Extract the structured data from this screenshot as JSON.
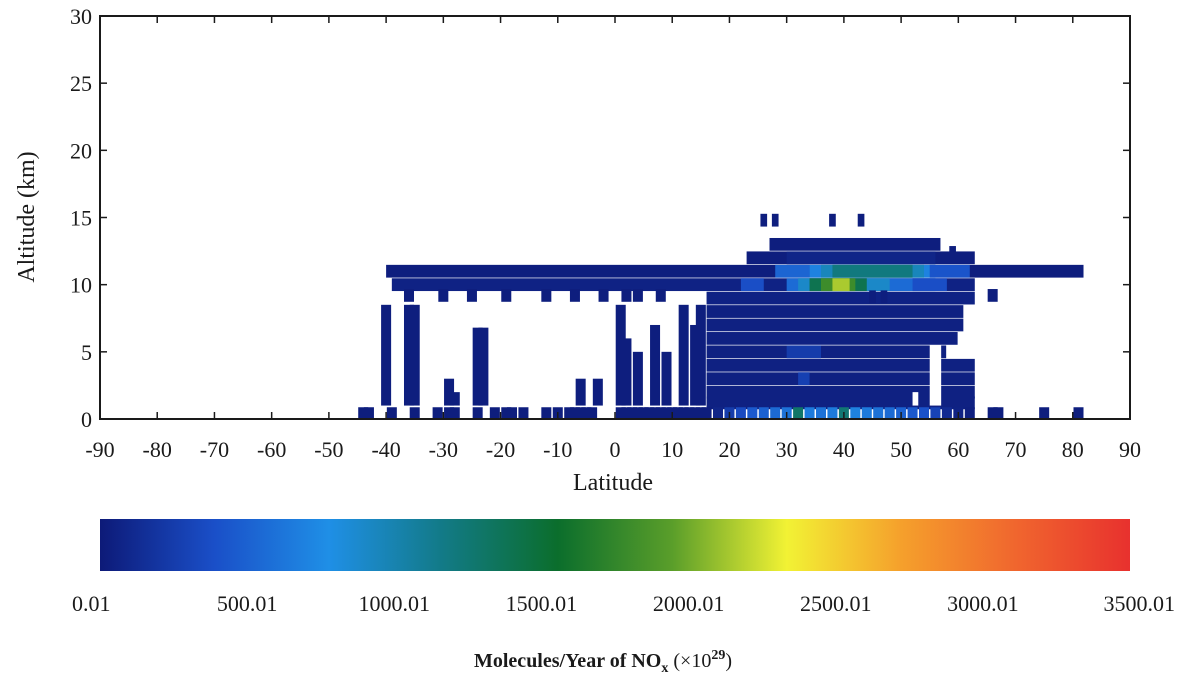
{
  "chart_data": {
    "type": "heatmap",
    "title": "",
    "xlabel": "Latitude",
    "ylabel": "Altitude (km)",
    "xlim": [
      -90,
      90
    ],
    "ylim": [
      0,
      30
    ],
    "x_ticks": [
      "-90",
      "-80",
      "-70",
      "-60",
      "-50",
      "-40",
      "-30",
      "-20",
      "-10",
      "0",
      "10",
      "20",
      "30",
      "40",
      "50",
      "60",
      "70",
      "80",
      "90"
    ],
    "y_ticks": [
      "0",
      "5",
      "10",
      "15",
      "20",
      "25",
      "30"
    ],
    "cell_size": {
      "lat": 1.75,
      "alt": 0.95
    },
    "colorbar": {
      "ticks": [
        "0.01",
        "500.01",
        "1000.01",
        "1500.01",
        "2000.01",
        "2500.01",
        "3000.01",
        "3500.01"
      ],
      "range": [
        0.01,
        3500.01
      ],
      "label_main": "Molecules/Year of NO",
      "label_sub": "x",
      "label_unit": " (×10",
      "label_exp": "29",
      "label_close": ")",
      "colors": [
        "#0d1a78",
        "#1a4fc8",
        "#1f8fe6",
        "#127a86",
        "#0b6e2c",
        "#5a9e2a",
        "#f2f234",
        "#f5a02c",
        "#f0662e",
        "#e8312e"
      ]
    },
    "cells": [
      {
        "lat": -44,
        "alt": 0.4,
        "v": 30
      },
      {
        "lat": -43,
        "alt": 0.4,
        "v": 30
      },
      {
        "lat": -39,
        "alt": 0.4,
        "v": 30
      },
      {
        "lat": -35,
        "alt": 0.4,
        "v": 30
      },
      {
        "lat": -31,
        "alt": 0.4,
        "v": 30
      },
      {
        "lat": -29,
        "alt": 0.4,
        "v": 30
      },
      {
        "lat": -28,
        "alt": 0.4,
        "v": 30
      },
      {
        "lat": -24,
        "alt": 0.4,
        "v": 30
      },
      {
        "lat": -21,
        "alt": 0.4,
        "v": 30
      },
      {
        "lat": -19,
        "alt": 0.4,
        "v": 30
      },
      {
        "lat": -18,
        "alt": 0.4,
        "v": 30
      },
      {
        "lat": -16,
        "alt": 0.4,
        "v": 30
      },
      {
        "lat": -12,
        "alt": 0.4,
        "v": 30
      },
      {
        "lat": -10,
        "alt": 0.4,
        "v": 30
      },
      {
        "lat": -8,
        "alt": 0.4,
        "v": 30
      },
      {
        "lat": -7,
        "alt": 0.4,
        "v": 30
      },
      {
        "lat": -6,
        "alt": 0.4,
        "v": 30
      },
      {
        "lat": -5,
        "alt": 0.4,
        "v": 30
      },
      {
        "lat": -4,
        "alt": 0.4,
        "v": 30
      },
      {
        "lat": 1,
        "alt": 0.4,
        "v": 30
      },
      {
        "lat": 2,
        "alt": 0.4,
        "v": 30
      },
      {
        "lat": 3,
        "alt": 0.4,
        "v": 30
      },
      {
        "lat": 4,
        "alt": 0.4,
        "v": 30
      },
      {
        "lat": 5,
        "alt": 0.4,
        "v": 30
      },
      {
        "lat": 6,
        "alt": 0.4,
        "v": 30
      },
      {
        "lat": 7,
        "alt": 0.4,
        "v": 30
      },
      {
        "lat": 8,
        "alt": 0.4,
        "v": 30
      },
      {
        "lat": 9,
        "alt": 0.4,
        "v": 30
      },
      {
        "lat": 10,
        "alt": 0.4,
        "v": 30
      },
      {
        "lat": 11,
        "alt": 0.4,
        "v": 30
      },
      {
        "lat": 12,
        "alt": 0.4,
        "v": 30
      },
      {
        "lat": 13,
        "alt": 0.4,
        "v": 30
      },
      {
        "lat": 14,
        "alt": 0.4,
        "v": 30
      },
      {
        "lat": 15,
        "alt": 0.4,
        "v": 30
      },
      {
        "lat": 16,
        "alt": 0.4,
        "v": 30
      },
      {
        "lat": 18,
        "alt": 0.4,
        "v": 80
      },
      {
        "lat": 20,
        "alt": 0.4,
        "v": 250
      },
      {
        "lat": 22,
        "alt": 0.4,
        "v": 350
      },
      {
        "lat": 24,
        "alt": 0.4,
        "v": 450
      },
      {
        "lat": 26,
        "alt": 0.4,
        "v": 500
      },
      {
        "lat": 28,
        "alt": 0.4,
        "v": 550
      },
      {
        "lat": 30,
        "alt": 0.4,
        "v": 600
      },
      {
        "lat": 32,
        "alt": 0.4,
        "v": 1300
      },
      {
        "lat": 34,
        "alt": 0.4,
        "v": 650
      },
      {
        "lat": 36,
        "alt": 0.4,
        "v": 600
      },
      {
        "lat": 38,
        "alt": 0.4,
        "v": 650
      },
      {
        "lat": 40,
        "alt": 0.4,
        "v": 1250
      },
      {
        "lat": 42,
        "alt": 0.4,
        "v": 700
      },
      {
        "lat": 44,
        "alt": 0.4,
        "v": 650
      },
      {
        "lat": 46,
        "alt": 0.4,
        "v": 600
      },
      {
        "lat": 48,
        "alt": 0.4,
        "v": 550
      },
      {
        "lat": 50,
        "alt": 0.4,
        "v": 500
      },
      {
        "lat": 52,
        "alt": 0.4,
        "v": 450
      },
      {
        "lat": 54,
        "alt": 0.4,
        "v": 400
      },
      {
        "lat": 56,
        "alt": 0.4,
        "v": 300
      },
      {
        "lat": 58,
        "alt": 0.4,
        "v": 120
      },
      {
        "lat": 60,
        "alt": 0.4,
        "v": 60
      },
      {
        "lat": 62,
        "alt": 0.4,
        "v": 40
      },
      {
        "lat": 66,
        "alt": 0.4,
        "v": 30
      },
      {
        "lat": 67,
        "alt": 0.4,
        "v": 30
      },
      {
        "lat": 75,
        "alt": 0.4,
        "v": 30
      },
      {
        "lat": 81,
        "alt": 0.4,
        "v": 30
      }
    ],
    "columns": [
      {
        "lat": -40,
        "alt0": 1.0,
        "alt1": 8.5,
        "v": 30
      },
      {
        "lat": -36,
        "alt0": 1.0,
        "alt1": 8.5,
        "v": 30
      },
      {
        "lat": -35,
        "alt0": 1.0,
        "alt1": 8.5,
        "v": 30
      },
      {
        "lat": -24,
        "alt0": 1.0,
        "alt1": 6.8,
        "v": 30
      },
      {
        "lat": -23,
        "alt0": 1.0,
        "alt1": 6.8,
        "v": 30
      },
      {
        "lat": -29,
        "alt0": 1.0,
        "alt1": 3.0,
        "v": 30
      },
      {
        "lat": -28,
        "alt0": 1.0,
        "alt1": 2.0,
        "v": 30
      },
      {
        "lat": -6,
        "alt0": 1.0,
        "alt1": 3.0,
        "v": 30
      },
      {
        "lat": -3,
        "alt0": 1.0,
        "alt1": 3.0,
        "v": 30
      },
      {
        "lat": 1,
        "alt0": 1.0,
        "alt1": 8.5,
        "v": 30
      },
      {
        "lat": 2,
        "alt0": 1.0,
        "alt1": 6.0,
        "v": 30
      },
      {
        "lat": 4,
        "alt0": 1.0,
        "alt1": 5.0,
        "v": 30
      },
      {
        "lat": 7,
        "alt0": 1.0,
        "alt1": 7.0,
        "v": 30
      },
      {
        "lat": 9,
        "alt0": 1.0,
        "alt1": 5.0,
        "v": 30
      },
      {
        "lat": 12,
        "alt0": 1.0,
        "alt1": 8.5,
        "v": 30
      },
      {
        "lat": 14,
        "alt0": 1.0,
        "alt1": 7.0,
        "v": 30
      },
      {
        "lat": 15,
        "alt0": 1.0,
        "alt1": 8.5,
        "v": 30
      }
    ],
    "band_rows": [
      {
        "alt": 11.0,
        "lat0": -40,
        "lat1": 81,
        "base": 30
      },
      {
        "alt": 10.0,
        "lat0": -39,
        "lat1": 62,
        "base": 60
      },
      {
        "alt": 9.0,
        "lat0": 16,
        "lat1": 62,
        "base": 60
      },
      {
        "alt": 8.0,
        "lat0": 16,
        "lat1": 60,
        "base": 50
      },
      {
        "alt": 7.0,
        "lat0": 16,
        "lat1": 60,
        "base": 50
      },
      {
        "alt": 6.0,
        "lat0": 16,
        "lat1": 59,
        "base": 50
      },
      {
        "alt": 5.0,
        "lat0": 16,
        "lat1": 57,
        "base": 50
      },
      {
        "alt": 4.0,
        "lat0": 16,
        "lat1": 62,
        "base": 50
      },
      {
        "alt": 3.0,
        "lat0": 16,
        "lat1": 62,
        "base": 50
      },
      {
        "alt": 2.0,
        "lat0": 16,
        "lat1": 62,
        "base": 50
      },
      {
        "alt": 1.2,
        "lat0": 16,
        "lat1": 62,
        "base": 50
      },
      {
        "alt": 12.0,
        "lat0": 23,
        "lat1": 62,
        "base": 30
      },
      {
        "alt": 13.0,
        "lat0": 27,
        "lat1": 56,
        "base": 30
      }
    ],
    "hot": [
      {
        "lat": 28,
        "lat1": 34,
        "alt": 11.0,
        "v": 520
      },
      {
        "lat": 34,
        "lat1": 56,
        "alt": 11.0,
        "v": 700
      },
      {
        "lat": 36,
        "lat1": 54,
        "alt": 11.0,
        "v": 950
      },
      {
        "lat": 38,
        "lat1": 52,
        "alt": 11.0,
        "v": 1200
      },
      {
        "lat": 30,
        "lat1": 56,
        "alt": 10.0,
        "v": 560
      },
      {
        "lat": 32,
        "lat1": 48,
        "alt": 10.0,
        "v": 900
      },
      {
        "lat": 34,
        "lat1": 44,
        "alt": 10.0,
        "v": 1400
      },
      {
        "lat": 36,
        "lat1": 42,
        "alt": 10.0,
        "v": 1800
      },
      {
        "lat": 38,
        "lat1": 41,
        "alt": 10.0,
        "v": 2150
      },
      {
        "lat": 30,
        "lat1": 36,
        "alt": 5.0,
        "v": 250
      },
      {
        "lat": 32,
        "lat1": 34,
        "alt": 3.0,
        "v": 280
      },
      {
        "lat": 22,
        "lat1": 26,
        "alt": 10.0,
        "v": 380
      },
      {
        "lat": 52,
        "lat1": 58,
        "alt": 10.0,
        "v": 380
      },
      {
        "lat": 55,
        "lat1": 62,
        "alt": 11.0,
        "v": 420
      },
      {
        "lat": 30,
        "lat1": 56,
        "alt": 12.0,
        "v": 80
      }
    ],
    "holes": [
      {
        "lat": 55,
        "lat1": 57,
        "alt0": 1.0,
        "alt1": 5.5
      },
      {
        "lat": 52,
        "lat1": 53,
        "alt0": 1.0,
        "alt1": 2.0
      }
    ],
    "dots": [
      {
        "lat": 26,
        "alt": 14.8
      },
      {
        "lat": 28,
        "alt": 14.8
      },
      {
        "lat": 38,
        "alt": 14.8
      },
      {
        "lat": 43,
        "alt": 14.8
      },
      {
        "lat": 59,
        "alt": 12.4
      },
      {
        "lat": 45,
        "alt": 9.1
      },
      {
        "lat": 47,
        "alt": 9.1
      }
    ],
    "gap_cells": [
      {
        "lat": -36,
        "alt": 9.2
      },
      {
        "lat": -30,
        "alt": 9.2
      },
      {
        "lat": -25,
        "alt": 9.2
      },
      {
        "lat": -19,
        "alt": 9.2
      },
      {
        "lat": -12,
        "alt": 9.2
      },
      {
        "lat": -7,
        "alt": 9.2
      },
      {
        "lat": -2,
        "alt": 9.2
      },
      {
        "lat": 2,
        "alt": 9.2
      },
      {
        "lat": 4,
        "alt": 9.2
      },
      {
        "lat": 8,
        "alt": 9.2
      },
      {
        "lat": 66,
        "alt": 9.2
      }
    ],
    "grid": false,
    "legend": "bottom-colorbar"
  }
}
